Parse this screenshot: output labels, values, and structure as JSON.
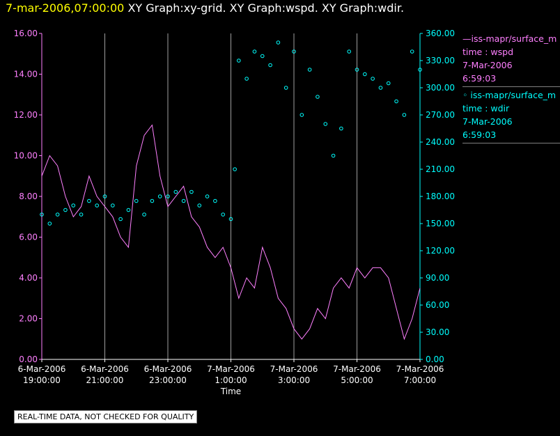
{
  "title": {
    "timestamp": "7-mar-2006,07:00:00",
    "graphs": "XY Graph:xy-grid.  XY Graph:wspd.  XY Graph:wdir."
  },
  "legend": [
    {
      "line": "—iss-mapr/surface_m",
      "var": "time : wspd",
      "date": "7-Mar-2006",
      "time": "6:59:03"
    },
    {
      "line": "◦ iss-mapr/surface_m",
      "var": "time : wdir",
      "date": "7-Mar-2006",
      "time": "6:59:03"
    }
  ],
  "note": "REAL-TIME DATA, NOT CHECKED FOR QUALITY",
  "colors": {
    "wspd": "#ff80ff",
    "wdir": "#00ffff",
    "grid": "#a0a0a0"
  },
  "chart_data": {
    "type": "line",
    "xlabel": "Time",
    "x_ticks": [
      {
        "t": 0,
        "line1": "6-Mar-2006",
        "line2": "19:00:00"
      },
      {
        "t": 2,
        "line1": "6-Mar-2006",
        "line2": "21:00:00"
      },
      {
        "t": 4,
        "line1": "6-Mar-2006",
        "line2": "23:00:00"
      },
      {
        "t": 6,
        "line1": "7-Mar-2006",
        "line2": "1:00:00"
      },
      {
        "t": 8,
        "line1": "7-Mar-2006",
        "line2": "3:00:00"
      },
      {
        "t": 10,
        "line1": "7-Mar-2006",
        "line2": "5:00:00"
      },
      {
        "t": 12,
        "line1": "7-Mar-2006",
        "line2": "7:00:00"
      }
    ],
    "xlim": [
      0,
      12
    ],
    "left_axis": {
      "ylim": [
        0,
        16
      ],
      "ticks": [
        "0.00",
        "2.00",
        "4.00",
        "6.00",
        "8.00",
        "10.00",
        "12.00",
        "14.00",
        "16.00"
      ]
    },
    "right_axis": {
      "ylim": [
        0,
        360
      ],
      "ticks": [
        "0.00",
        "30.00",
        "60.00",
        "90.00",
        "120.00",
        "150.00",
        "180.00",
        "210.00",
        "240.00",
        "270.00",
        "300.00",
        "330.00",
        "360.00"
      ]
    },
    "series": [
      {
        "key": "wspd",
        "type": "line",
        "axis": "left",
        "x": [
          0,
          0.25,
          0.5,
          0.75,
          1,
          1.25,
          1.5,
          1.75,
          2,
          2.25,
          2.5,
          2.75,
          3,
          3.25,
          3.5,
          3.75,
          4,
          4.25,
          4.5,
          4.75,
          5,
          5.25,
          5.5,
          5.75,
          6,
          6.25,
          6.5,
          6.75,
          7,
          7.25,
          7.5,
          7.75,
          8,
          8.25,
          8.5,
          8.75,
          9,
          9.25,
          9.5,
          9.75,
          10,
          10.25,
          10.5,
          10.75,
          11,
          11.25,
          11.5,
          11.75,
          12
        ],
        "y": [
          9.0,
          10.0,
          9.5,
          8.0,
          7.0,
          7.5,
          9.0,
          8.0,
          7.5,
          7.0,
          6.0,
          5.5,
          9.5,
          11.0,
          11.5,
          9.0,
          7.5,
          8.0,
          8.5,
          7.0,
          6.5,
          5.5,
          5.0,
          5.5,
          4.5,
          3.0,
          4.0,
          3.5,
          5.5,
          4.5,
          3.0,
          2.5,
          1.5,
          1.0,
          1.5,
          2.5,
          2.0,
          3.5,
          4.0,
          3.5,
          4.5,
          4.0,
          4.5,
          4.5,
          4.0,
          2.5,
          1.0,
          2.0,
          3.5
        ]
      },
      {
        "key": "wdir",
        "type": "scatter",
        "axis": "right",
        "x": [
          0,
          0.25,
          0.5,
          0.75,
          1,
          1.25,
          1.5,
          1.75,
          2,
          2.25,
          2.5,
          2.75,
          3,
          3.25,
          3.5,
          3.75,
          4,
          4.25,
          4.5,
          4.75,
          5,
          5.25,
          5.5,
          5.75,
          6,
          6.125,
          6.25,
          6.5,
          6.75,
          7,
          7.25,
          7.5,
          7.75,
          8,
          8.25,
          8.5,
          8.75,
          9,
          9.25,
          9.5,
          9.75,
          10,
          10.25,
          10.5,
          10.75,
          11,
          11.25,
          11.5,
          11.75,
          12
        ],
        "y": [
          160,
          150,
          160,
          165,
          170,
          160,
          175,
          170,
          180,
          170,
          155,
          165,
          175,
          160,
          175,
          180,
          180,
          185,
          175,
          185,
          170,
          180,
          175,
          160,
          155,
          210,
          330,
          310,
          340,
          335,
          325,
          350,
          300,
          340,
          270,
          320,
          290,
          260,
          225,
          255,
          340,
          320,
          315,
          310,
          300,
          305,
          285,
          270,
          340,
          320
        ]
      }
    ]
  }
}
